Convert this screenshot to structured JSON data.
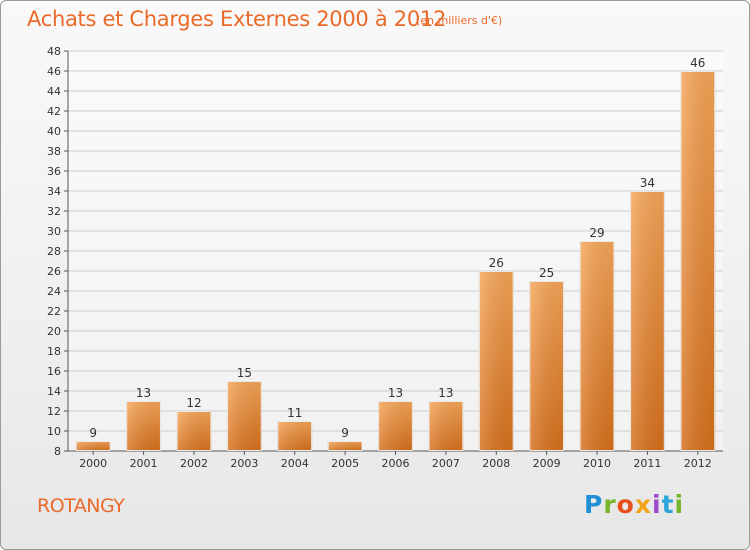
{
  "header": {
    "title": "Achats et Charges Externes 2000 à 2012",
    "subtitle": "(en milliers d'€)"
  },
  "footer": {
    "commune": "ROTANGY",
    "logo": {
      "letters": [
        "P",
        "r",
        "o",
        "x",
        "i",
        "t",
        "i"
      ],
      "icon": "proxiti-logo"
    }
  },
  "colors": {
    "bar_light": "#f7a658",
    "bar_dark": "#d7701c",
    "title": "#ea6a2a",
    "grid": "#cccccc"
  },
  "chart_data": {
    "type": "bar",
    "title": "Achats et Charges Externes 2000 à 2012",
    "subtitle": "(en milliers d'€)",
    "categories": [
      "2000",
      "2001",
      "2002",
      "2003",
      "2004",
      "2005",
      "2006",
      "2007",
      "2008",
      "2009",
      "2010",
      "2011",
      "2012"
    ],
    "values": [
      9,
      13,
      12,
      15,
      11,
      9,
      13,
      13,
      26,
      25,
      29,
      34,
      46
    ],
    "ylim": [
      8,
      48
    ],
    "yticks": [
      8,
      10,
      12,
      14,
      16,
      18,
      20,
      22,
      24,
      26,
      28,
      30,
      32,
      34,
      36,
      38,
      40,
      42,
      44,
      46,
      48
    ],
    "grid": true,
    "xlabel": "",
    "ylabel": ""
  }
}
